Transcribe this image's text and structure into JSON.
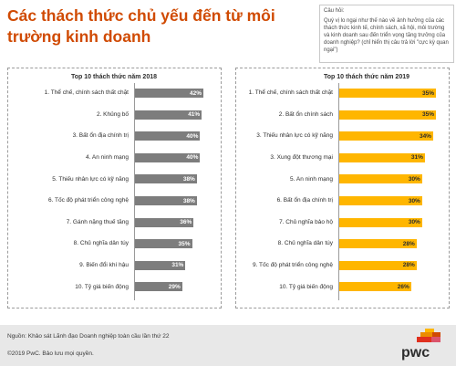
{
  "title": "Các thách thức chủ yếu đến từ môi trường kinh doanh",
  "question": {
    "label": "Câu hỏi:",
    "text": "Quý vị lo ngại như thế nào về ảnh hưởng của các thách thức kinh tế, chính sách, xã hội, môi trường và kinh doanh sau đến triển vọng tăng trưởng của doanh nghiệp? (chỉ hiển thị câu trả lời \"cực kỳ quan ngại\")"
  },
  "chart_data": [
    {
      "type": "bar",
      "orientation": "horizontal",
      "title": "Top 10 thách thức năm 2018",
      "categories": [
        "1. Thể chế, chính sách thất chặt",
        "2. Khủng bố",
        "3. Bất ổn địa chính trị",
        "4. An ninh mạng",
        "5. Thiếu nhân lực có kỹ năng",
        "6. Tốc độ phát triển công nghệ",
        "7. Gánh nặng thuế tăng",
        "8. Chủ nghĩa dân túy",
        "9. Biến đổi khí hậu",
        "10. Tỷ giá biến động"
      ],
      "values": [
        42,
        41,
        40,
        40,
        38,
        38,
        36,
        35,
        31,
        29
      ],
      "value_labels": [
        "42%",
        "41%",
        "40%",
        "40%",
        "38%",
        "38%",
        "36%",
        "35%",
        "31%",
        "29%"
      ],
      "unit": "%",
      "xlim": [
        0,
        42
      ],
      "color": "#7d7d7d"
    },
    {
      "type": "bar",
      "orientation": "horizontal",
      "title": "Top 10 thách thức năm 2019",
      "categories": [
        "1. Thể chế, chính sách thất chặt",
        "2. Bất ổn chính sách",
        "3. Thiếu nhân lực có kỹ năng",
        "3. Xung đột thương mại",
        "5. An ninh mạng",
        "6. Bất ổn địa chính trị",
        "7. Chủ nghĩa bảo hộ",
        "8. Chủ nghĩa dân túy",
        "9. Tốc độ phát triển công nghệ",
        "10. Tỷ giá biến động"
      ],
      "values": [
        35,
        35,
        34,
        31,
        30,
        30,
        30,
        28,
        28,
        26
      ],
      "value_labels": [
        "35%",
        "35%",
        "34%",
        "31%",
        "30%",
        "30%",
        "30%",
        "28%",
        "28%",
        "26%"
      ],
      "unit": "%",
      "xlim": [
        0,
        35
      ],
      "color": "#ffb600"
    }
  ],
  "footer": {
    "source": "Nguồn: Khảo sát Lãnh đạo Doanh nghiệp toàn cầu lần thứ 22",
    "copyright": "©2019 PwC. Bảo lưu mọi quyền.",
    "logo_text": "pwc"
  }
}
